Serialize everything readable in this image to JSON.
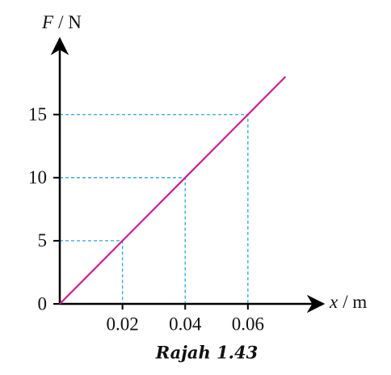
{
  "chart_data": {
    "type": "line",
    "y_symbol": "F",
    "y_unit": "/ N",
    "x_symbol": "x",
    "x_unit": "/ m",
    "caption": "Rajah 1.43",
    "x": [
      0,
      0.02,
      0.04,
      0.06,
      0.072
    ],
    "y": [
      0,
      5,
      10,
      15,
      18
    ],
    "color": "#cc1f8f",
    "guide_color": "#2aa6dc",
    "xlim": [
      0,
      0.084
    ],
    "ylim": [
      0,
      21
    ],
    "xticks": [
      0.02,
      0.04,
      0.06
    ],
    "yticks": [
      0,
      5,
      10,
      15
    ]
  }
}
